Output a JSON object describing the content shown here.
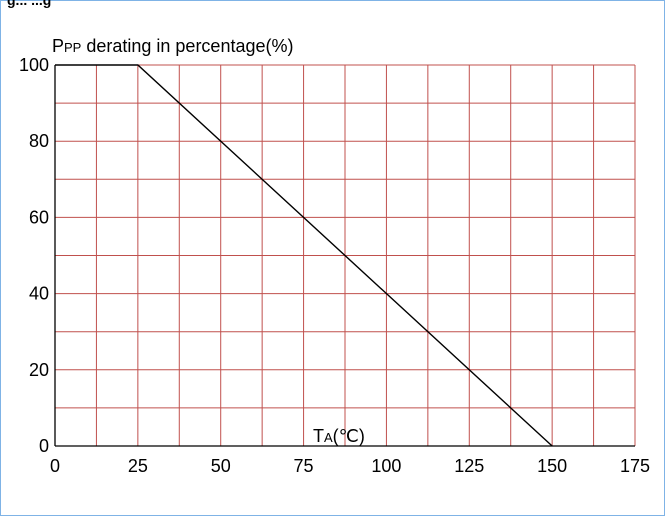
{
  "header_clip": "g...  ...g",
  "chart_data": {
    "type": "line",
    "title": "",
    "ylabel_main": "P",
    "ylabel_sub": "PP",
    "ylabel_rest": " derating in percentage(%)",
    "xlabel_main": "T",
    "xlabel_sub": "A",
    "xlabel_rest": "(℃)",
    "xlim": [
      0,
      175
    ],
    "ylim": [
      0,
      100
    ],
    "x_ticks": [
      0,
      25,
      50,
      75,
      100,
      125,
      150,
      175
    ],
    "y_ticks": [
      0,
      20,
      40,
      60,
      80,
      100
    ],
    "x_minor_step": 12.5,
    "y_minor_step": 10,
    "grid": true,
    "grid_color": "#c0504d",
    "line_color": "#000000",
    "series": [
      {
        "x": [
          0,
          25,
          150
        ],
        "y": [
          100,
          100,
          0
        ]
      }
    ]
  }
}
